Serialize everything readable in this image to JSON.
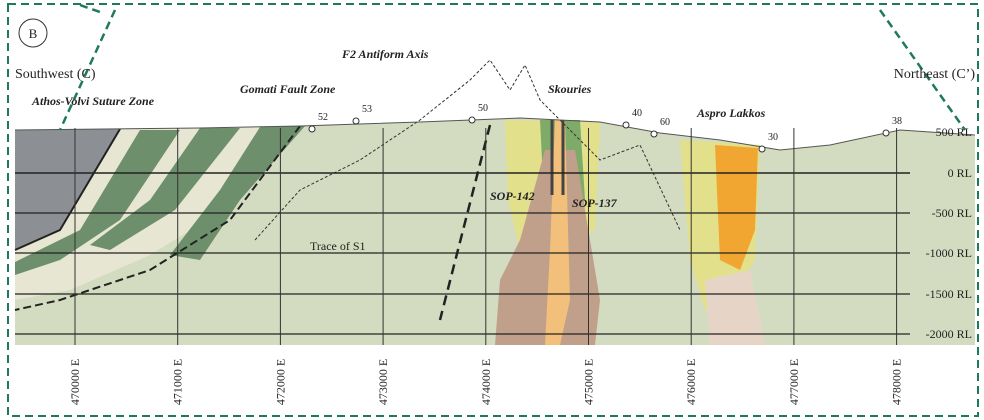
{
  "panel_label": "B",
  "directions": {
    "left": "Southwest (C)",
    "right": "Northeast (C’)"
  },
  "annotations": {
    "suture": "Athos-Volvi Suture Zone",
    "fault": "Gomati Fault Zone",
    "antiform": "F2 Antiform Axis",
    "skouries": "Skouries",
    "aspro": "Aspro Lakkos",
    "sop142": "SOP-142",
    "sop137": "SOP-137",
    "trace": "Trace of S1"
  },
  "dips": [
    "52",
    "53",
    "50",
    "40",
    "60",
    "30",
    "38"
  ],
  "elevations": [
    "500 RL",
    "0 RL",
    "-500 RL",
    "-1000 RL",
    "-1500 RL",
    "-2000 RL"
  ],
  "eastings": [
    "470000 E",
    "471000 E",
    "472000 E",
    "473000 E",
    "474000 E",
    "475000 E",
    "476000 E",
    "477000 E",
    "478000 E"
  ]
}
